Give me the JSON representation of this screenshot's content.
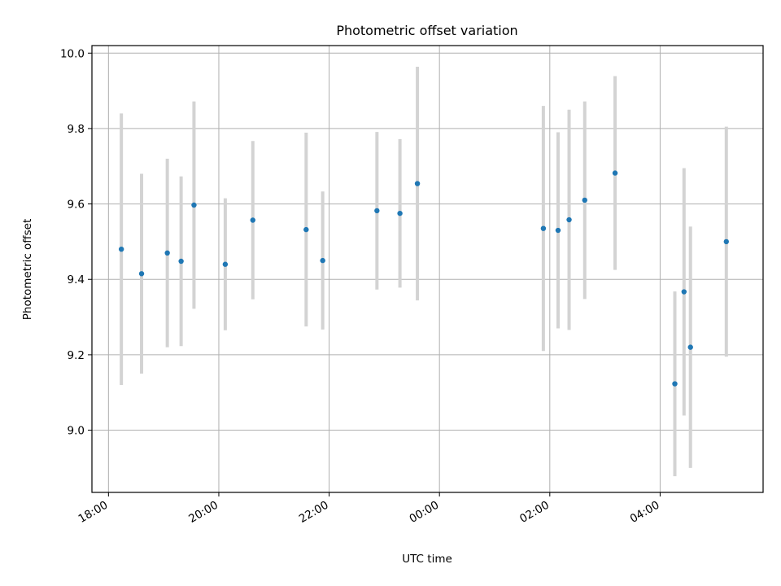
{
  "chart_data": {
    "type": "scatter",
    "title": "Photometric offset variation",
    "xlabel": "UTC time",
    "ylabel": "Photometric offset",
    "x_axis": {
      "kind": "time",
      "range": [
        "17:42",
        "05:52"
      ],
      "ticks": [
        "18:00",
        "20:00",
        "22:00",
        "00:00",
        "02:00",
        "04:00"
      ]
    },
    "y_axis": {
      "range": [
        8.835,
        10.02
      ],
      "ticks": [
        9.0,
        9.2,
        9.4,
        9.6,
        9.8,
        10.0
      ],
      "tick_labels": [
        "9.0",
        "9.2",
        "9.4",
        "9.6",
        "9.8",
        "10.0"
      ]
    },
    "grid": true,
    "colors": {
      "point": "#1f77b4",
      "errorbar": "#d3d3d3",
      "grid": "#b0b0b0"
    },
    "points": [
      {
        "time": "18:14",
        "y": 9.48,
        "err": 0.36
      },
      {
        "time": "18:36",
        "y": 9.415,
        "err": 0.265
      },
      {
        "time": "19:04",
        "y": 9.47,
        "err": 0.25
      },
      {
        "time": "19:19",
        "y": 9.448,
        "err": 0.225
      },
      {
        "time": "19:33",
        "y": 9.597,
        "err": 0.275
      },
      {
        "time": "20:07",
        "y": 9.44,
        "err": 0.175
      },
      {
        "time": "20:37",
        "y": 9.557,
        "err": 0.21
      },
      {
        "time": "21:35",
        "y": 9.532,
        "err": 0.257
      },
      {
        "time": "21:53",
        "y": 9.45,
        "err": 0.183
      },
      {
        "time": "22:52",
        "y": 9.582,
        "err": 0.209
      },
      {
        "time": "23:17",
        "y": 9.575,
        "err": 0.197
      },
      {
        "time": "23:36",
        "y": 9.654,
        "err": 0.31
      },
      {
        "time": "01:53",
        "y": 9.535,
        "err": 0.325
      },
      {
        "time": "02:09",
        "y": 9.53,
        "err": 0.26
      },
      {
        "time": "02:21",
        "y": 9.558,
        "err": 0.292
      },
      {
        "time": "02:38",
        "y": 9.61,
        "err": 0.262
      },
      {
        "time": "03:11",
        "y": 9.682,
        "err": 0.257
      },
      {
        "time": "04:16",
        "y": 9.123,
        "err": 0.245
      },
      {
        "time": "04:26",
        "y": 9.367,
        "err": 0.328
      },
      {
        "time": "04:33",
        "y": 9.22,
        "err": 0.32
      },
      {
        "time": "05:12",
        "y": 9.5,
        "err": 0.305
      }
    ]
  }
}
